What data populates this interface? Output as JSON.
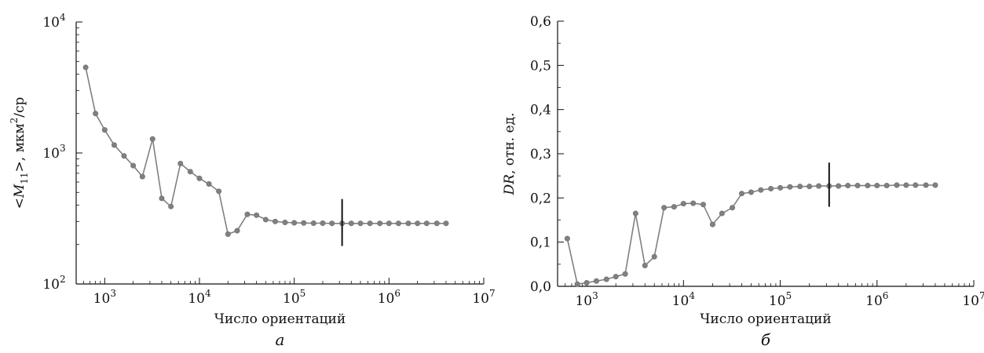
{
  "chart_data": [
    {
      "type": "line",
      "panel_label": "а",
      "xlabel": "Число ориентаций",
      "ylabel": {
        "prefix": "<",
        "var": "M",
        "sub": "11",
        "suffix": ">, мкм",
        "sup": "2",
        "tail": "/ср"
      },
      "x_scale": "log",
      "y_scale": "log",
      "xlim": [
        500,
        10000000
      ],
      "ylim": [
        100,
        10000
      ],
      "x_ticks": [
        {
          "value": 1000,
          "base": "10",
          "exp": "3"
        },
        {
          "value": 10000,
          "base": "10",
          "exp": "4"
        },
        {
          "value": 100000,
          "base": "10",
          "exp": "5"
        },
        {
          "value": 1000000,
          "base": "10",
          "exp": "6"
        },
        {
          "value": 10000000,
          "base": "10",
          "exp": "7"
        }
      ],
      "y_ticks": [
        {
          "value": 100,
          "base": "10",
          "exp": "2"
        },
        {
          "value": 1000,
          "base": "10",
          "exp": "3"
        },
        {
          "value": 10000,
          "base": "10",
          "exp": "4"
        }
      ],
      "series_color": "#808080",
      "x": [
        630,
        800,
        1000,
        1260,
        1600,
        2000,
        2500,
        3200,
        4000,
        5000,
        6300,
        8000,
        10000,
        12600,
        16000,
        20000,
        25000,
        32000,
        40000,
        50000,
        63000,
        80000,
        100000,
        126000,
        160000,
        200000,
        250000,
        320000,
        400000,
        500000,
        630000,
        800000,
        1000000,
        1260000,
        1600000,
        2000000,
        2500000,
        3200000,
        4000000
      ],
      "y": [
        4500,
        2000,
        1500,
        1150,
        950,
        800,
        660,
        1280,
        450,
        390,
        830,
        720,
        640,
        580,
        510,
        240,
        255,
        340,
        335,
        310,
        300,
        295,
        293,
        292,
        291,
        291,
        290,
        290,
        290,
        290,
        290,
        290,
        290,
        290,
        290,
        290,
        290,
        290,
        290
      ],
      "marker": {
        "x": 320000,
        "y_range": [
          195,
          445
        ]
      }
    },
    {
      "type": "line",
      "panel_label": "б",
      "xlabel": "Число ориентаций",
      "ylabel": {
        "var": "DR",
        "suffix": ", отн. ед."
      },
      "x_scale": "log",
      "y_scale": "linear",
      "xlim": [
        500,
        10000000
      ],
      "ylim": [
        0,
        0.6
      ],
      "x_ticks": [
        {
          "value": 1000,
          "base": "10",
          "exp": "3"
        },
        {
          "value": 10000,
          "base": "10",
          "exp": "4"
        },
        {
          "value": 100000,
          "base": "10",
          "exp": "5"
        },
        {
          "value": 1000000,
          "base": "10",
          "exp": "6"
        },
        {
          "value": 10000000,
          "base": "10",
          "exp": "7"
        }
      ],
      "y_ticks": [
        {
          "value": 0,
          "label": "0,0"
        },
        {
          "value": 0.1,
          "label": "0,1"
        },
        {
          "value": 0.2,
          "label": "0,2"
        },
        {
          "value": 0.3,
          "label": "0,3"
        },
        {
          "value": 0.4,
          "label": "0,4"
        },
        {
          "value": 0.5,
          "label": "0,5"
        },
        {
          "value": 0.6,
          "label": "0,6"
        }
      ],
      "series_color": "#808080",
      "x": [
        630,
        800,
        1000,
        1260,
        1600,
        2000,
        2500,
        3200,
        4000,
        5000,
        6300,
        8000,
        10000,
        12600,
        16000,
        20000,
        25000,
        32000,
        40000,
        50000,
        63000,
        80000,
        100000,
        126000,
        160000,
        200000,
        250000,
        320000,
        400000,
        500000,
        630000,
        800000,
        1000000,
        1260000,
        1600000,
        2000000,
        2500000,
        3200000,
        4000000
      ],
      "y": [
        0.108,
        0.005,
        0.008,
        0.012,
        0.016,
        0.022,
        0.028,
        0.165,
        0.047,
        0.067,
        0.178,
        0.18,
        0.187,
        0.188,
        0.185,
        0.14,
        0.165,
        0.178,
        0.21,
        0.213,
        0.218,
        0.221,
        0.223,
        0.225,
        0.226,
        0.226,
        0.227,
        0.227,
        0.227,
        0.228,
        0.228,
        0.228,
        0.228,
        0.228,
        0.229,
        0.229,
        0.229,
        0.229,
        0.229
      ],
      "marker": {
        "x": 320000,
        "y_range": [
          0.18,
          0.28
        ]
      }
    }
  ]
}
